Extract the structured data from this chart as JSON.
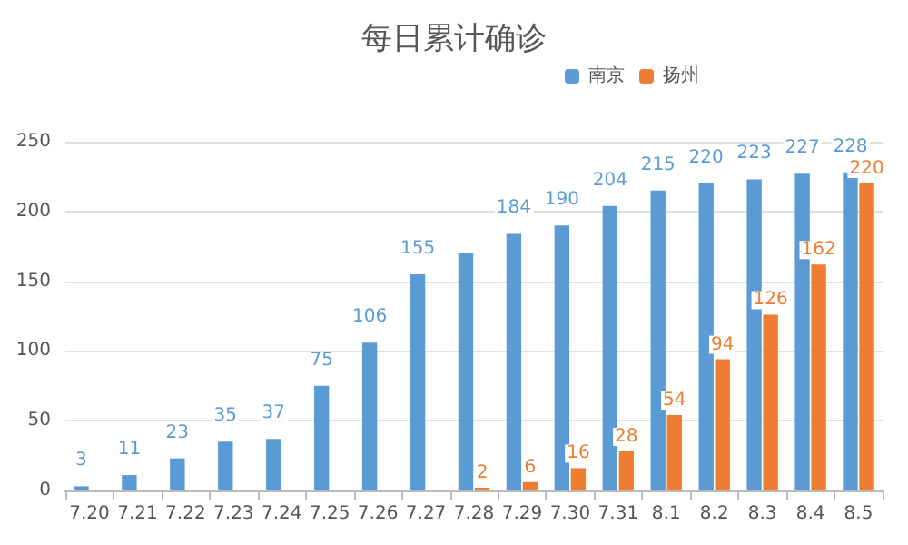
{
  "chart_data": {
    "type": "bar",
    "title": "每日累计确诊",
    "categories": [
      "7.20",
      "7.21",
      "7.22",
      "7.23",
      "7.24",
      "7.25",
      "7.26",
      "7.27",
      "7.28",
      "7.29",
      "7.30",
      "7.31",
      "8.1",
      "8.2",
      "8.3",
      "8.4",
      "8.5"
    ],
    "series": [
      {
        "name": "南京",
        "color": "#5b9bd5",
        "values": [
          3,
          11,
          23,
          35,
          37,
          75,
          106,
          155,
          170,
          184,
          190,
          204,
          215,
          220,
          223,
          227,
          228
        ],
        "value_labels": [
          "3",
          "11",
          "23",
          "35",
          "37",
          "75",
          "106",
          "155",
          null,
          "184",
          "190",
          "204",
          "215",
          "220",
          "223",
          "227",
          "228"
        ]
      },
      {
        "name": "扬州",
        "color": "#ed7d31",
        "values": [
          null,
          null,
          null,
          null,
          null,
          null,
          null,
          null,
          2,
          6,
          16,
          28,
          54,
          94,
          126,
          162,
          220
        ],
        "value_labels": [
          null,
          null,
          null,
          null,
          null,
          null,
          null,
          null,
          "2",
          "6",
          "16",
          "28",
          "54",
          "94",
          "126",
          "162",
          "220"
        ]
      }
    ],
    "ylim": [
      0,
      250
    ],
    "yticks": [
      0,
      50,
      100,
      150,
      200,
      250
    ],
    "grid": "y",
    "legend": "top right"
  }
}
